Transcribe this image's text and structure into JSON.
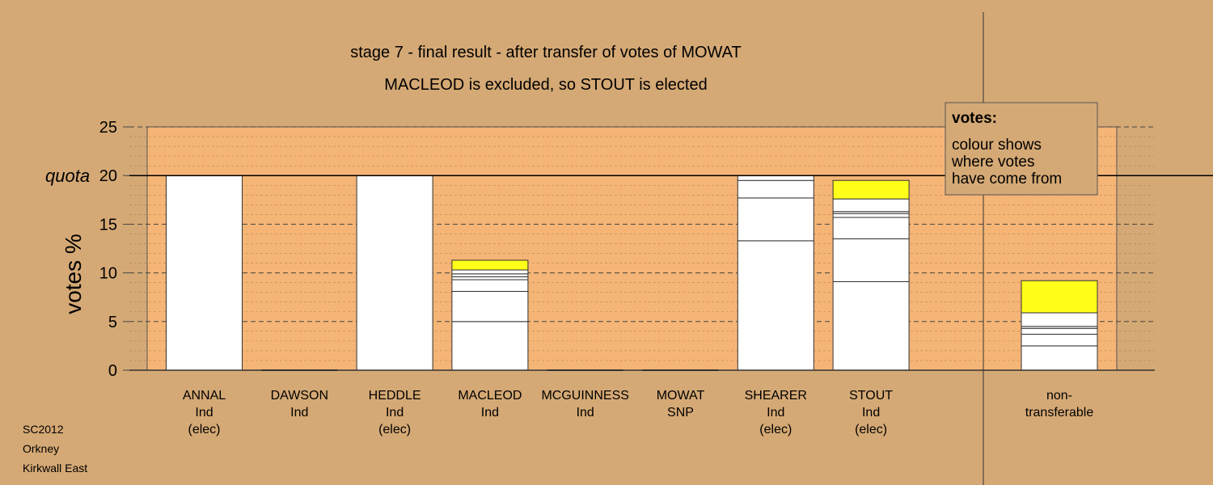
{
  "chart_data": {
    "type": "bar",
    "title": "stage 7 - final result - after transfer of votes of MOWAT",
    "subtitle": "MACLEOD is excluded, so STOUT is elected",
    "ylabel": "votes %",
    "ylim": [
      0,
      25
    ],
    "yticks": [
      "0",
      "5",
      "10",
      "15",
      "20",
      "25"
    ],
    "quota": {
      "label": "quota",
      "value": 20
    },
    "legend": {
      "title": "votes:",
      "lines": [
        "colour shows",
        "where votes",
        "have come from"
      ]
    },
    "candidates": [
      {
        "name": "ANNAL",
        "party": "Ind",
        "status": "(elec)",
        "segments": [
          {
            "value": 20,
            "color": "#ffffff"
          }
        ]
      },
      {
        "name": "DAWSON",
        "party": "Ind",
        "status": "",
        "segments": []
      },
      {
        "name": "HEDDLE",
        "party": "Ind",
        "status": "(elec)",
        "segments": [
          {
            "value": 20,
            "color": "#ffffff"
          }
        ]
      },
      {
        "name": "MACLEOD",
        "party": "Ind",
        "status": "",
        "segments": [
          {
            "value": 5.0,
            "color": "#ffffff"
          },
          {
            "value": 3.1,
            "color": "#ffffff"
          },
          {
            "value": 1.2,
            "color": "#ffffff"
          },
          {
            "value": 0.3,
            "color": "#ffffff"
          },
          {
            "value": 0.3,
            "color": "#ffffff"
          },
          {
            "value": 0.4,
            "color": "#ffffff"
          },
          {
            "value": 1.0,
            "color": "#ffff1a"
          }
        ]
      },
      {
        "name": "MCGUINNESS",
        "party": "Ind",
        "status": "",
        "segments": []
      },
      {
        "name": "MOWAT",
        "party": "SNP",
        "status": "",
        "segments": []
      },
      {
        "name": "SHEARER",
        "party": "Ind",
        "status": "(elec)",
        "segments": [
          {
            "value": 13.3,
            "color": "#ffffff"
          },
          {
            "value": 4.4,
            "color": "#ffffff"
          },
          {
            "value": 1.8,
            "color": "#ffffff"
          },
          {
            "value": 0.5,
            "color": "#ffffff"
          }
        ]
      },
      {
        "name": "STOUT",
        "party": "Ind",
        "status": "(elec)",
        "segments": [
          {
            "value": 9.1,
            "color": "#ffffff"
          },
          {
            "value": 4.4,
            "color": "#ffffff"
          },
          {
            "value": 2.2,
            "color": "#ffffff"
          },
          {
            "value": 0.4,
            "color": "#ffffff"
          },
          {
            "value": 0.2,
            "color": "#ffffff"
          },
          {
            "value": 1.3,
            "color": "#ffffff"
          },
          {
            "value": 1.9,
            "color": "#ffff1a"
          }
        ]
      }
    ],
    "nontransferable": {
      "label": [
        "non-",
        "transferable"
      ],
      "segments": [
        {
          "value": 2.5,
          "color": "#ffffff"
        },
        {
          "value": 1.2,
          "color": "#ffffff"
        },
        {
          "value": 0.6,
          "color": "#ffffff"
        },
        {
          "value": 0.2,
          "color": "#ffffff"
        },
        {
          "value": 1.4,
          "color": "#ffffff"
        },
        {
          "value": 3.3,
          "color": "#ffff1a"
        }
      ]
    }
  },
  "footer": [
    "SC2012",
    "Orkney",
    "Kirkwall East"
  ],
  "colors": {
    "background": "#d5a975",
    "plot_fill": "#f5b576",
    "transfer": "#ffff1a"
  }
}
